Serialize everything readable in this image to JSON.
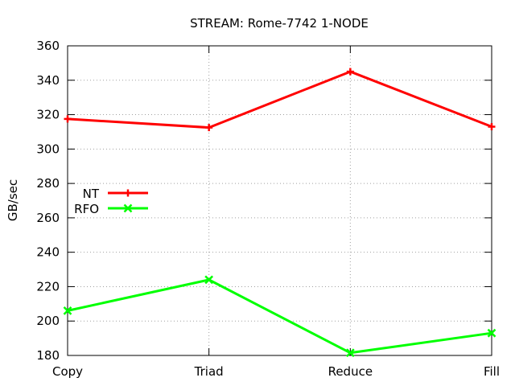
{
  "chart_data": {
    "type": "line",
    "title": "STREAM: Rome-7742 1-NODE",
    "xlabel": "",
    "ylabel": "GB/sec",
    "categories": [
      "Copy",
      "Triad",
      "Reduce",
      "Fill"
    ],
    "ylim": [
      180,
      360
    ],
    "yticks": [
      180,
      200,
      220,
      240,
      260,
      280,
      300,
      320,
      340,
      360
    ],
    "grid": true,
    "legend_position": "left",
    "series": [
      {
        "name": "NT",
        "color": "#ff0000",
        "marker": "plus",
        "values": [
          317.5,
          312.5,
          345,
          313
        ]
      },
      {
        "name": "RFO",
        "color": "#00ff00",
        "marker": "cross",
        "values": [
          206,
          224,
          181.5,
          193
        ]
      }
    ]
  }
}
